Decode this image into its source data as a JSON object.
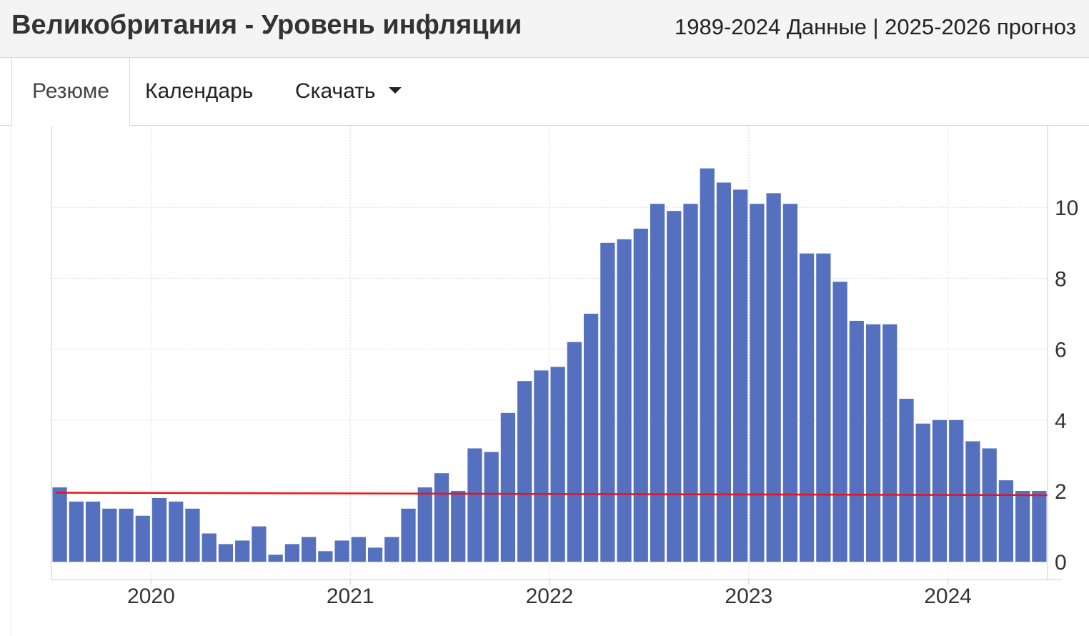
{
  "header": {
    "title": "Великобритания - Уровень инфляции",
    "subtitle": "1989-2024 Данные | 2025-2026 прогноз"
  },
  "tabs": [
    {
      "label": "Резюме",
      "active": true
    },
    {
      "label": "Календарь",
      "active": false
    },
    {
      "label": "Скачать",
      "active": false,
      "has_dropdown": true
    }
  ],
  "colors": {
    "bar": "#5470be",
    "average_line": "#e8141b",
    "grid": "#dddddd"
  },
  "chart_data": {
    "type": "bar",
    "title": "",
    "xlabel": "",
    "ylabel": "",
    "ylim": [
      -0.5,
      11.7
    ],
    "yticks": [
      0,
      2,
      4,
      6,
      8,
      10
    ],
    "y_axis_side": "right",
    "grid": true,
    "x_tick_labels": [
      "2020",
      "2021",
      "2022",
      "2023",
      "2024"
    ],
    "months_start": "2019-07",
    "months_end": "2024-06",
    "values": [
      2.1,
      1.7,
      1.7,
      1.5,
      1.5,
      1.3,
      1.8,
      1.7,
      1.5,
      0.8,
      0.5,
      0.6,
      1.0,
      0.2,
      0.5,
      0.7,
      0.3,
      0.6,
      0.7,
      0.4,
      0.7,
      1.5,
      2.1,
      2.5,
      2.0,
      3.2,
      3.1,
      4.2,
      5.1,
      5.4,
      5.5,
      6.2,
      7.0,
      9.0,
      9.1,
      9.4,
      10.1,
      9.9,
      10.1,
      11.1,
      10.7,
      10.5,
      10.1,
      10.4,
      10.1,
      8.7,
      8.7,
      7.9,
      6.8,
      6.7,
      6.7,
      4.6,
      3.9,
      4.0,
      4.0,
      3.4,
      3.2,
      2.3,
      2.0,
      2.0
    ],
    "average_line": {
      "start": 1.95,
      "end": 1.88
    }
  }
}
